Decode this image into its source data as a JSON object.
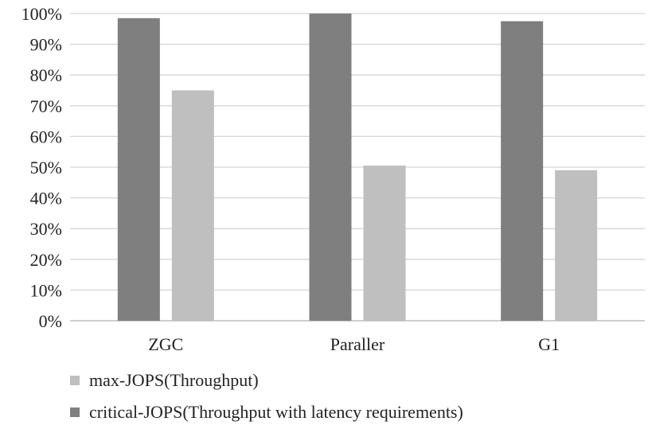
{
  "chart_data": {
    "type": "bar",
    "categories": [
      "ZGC",
      "Paraller",
      "G1"
    ],
    "series": [
      {
        "name": "critical-JOPS(Throughput with latency requirements)",
        "values": [
          98.5,
          100,
          97.5
        ],
        "color": "#7f7f7f"
      },
      {
        "name": "max-JOPS(Throughput)",
        "values": [
          75,
          50.5,
          49
        ],
        "color": "#bfbfbf"
      }
    ],
    "ylim": [
      0,
      100
    ],
    "yticks": [
      "0%",
      "10%",
      "20%",
      "30%",
      "40%",
      "50%",
      "60%",
      "70%",
      "80%",
      "90%",
      "100%"
    ],
    "grid": true,
    "legend_position": "bottom",
    "legend_order": [
      1,
      0
    ]
  }
}
